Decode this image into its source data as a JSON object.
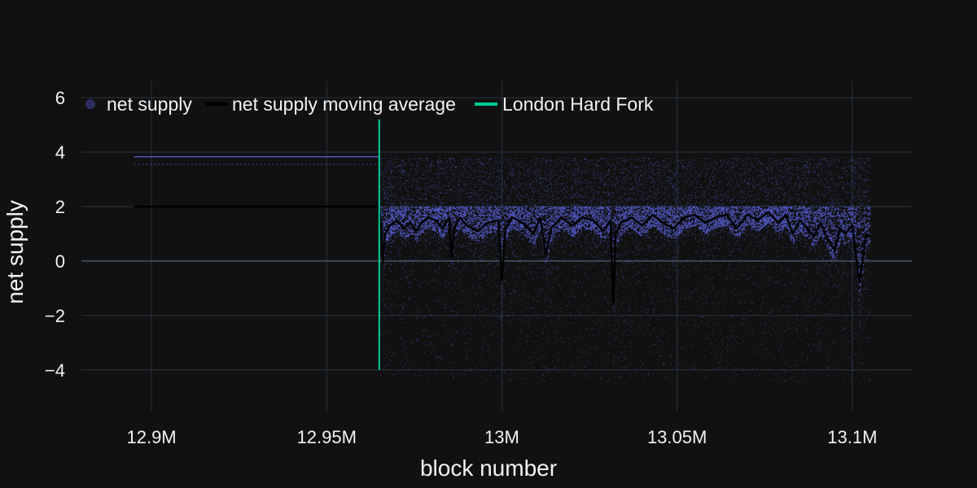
{
  "chart_data": {
    "type": "scatter",
    "xlabel": "block number",
    "ylabel": "net supply",
    "xlim": [
      12880000,
      13117000
    ],
    "ylim": [
      -5.5,
      6.6
    ],
    "x_ticks": [
      {
        "value": 12900000,
        "label": "12.9M"
      },
      {
        "value": 12950000,
        "label": "12.95M"
      },
      {
        "value": 13000000,
        "label": "13M"
      },
      {
        "value": 13050000,
        "label": "13.05M"
      },
      {
        "value": 13100000,
        "label": "13.1M"
      }
    ],
    "y_ticks": [
      {
        "value": -4,
        "label": "−4"
      },
      {
        "value": -2,
        "label": "−2"
      },
      {
        "value": 0,
        "label": "0"
      },
      {
        "value": 2,
        "label": "2"
      },
      {
        "value": 4,
        "label": "4"
      },
      {
        "value": 6,
        "label": "6"
      }
    ],
    "grid": true,
    "legend_position": "top-left",
    "legend": [
      {
        "name": "net supply",
        "kind": "marker",
        "color": "#2e2e5e"
      },
      {
        "name": "net supply moving average",
        "kind": "line",
        "color": "#000000"
      },
      {
        "name": "London Hard Fork",
        "kind": "line",
        "color": "#00cc96"
      }
    ],
    "series": [
      {
        "name": "net supply",
        "color": "#636efa",
        "pre_fork_levels": [
          2.0,
          3.83,
          3.55
        ],
        "x_range": [
          12895000,
          13105000
        ],
        "post_fork_band": {
          "upper": 2.0,
          "typical_low": 0.3,
          "sparse_high": 3.8,
          "min": -4.5
        }
      },
      {
        "name": "net supply moving average",
        "color": "#000000",
        "x": [
          12895000,
          12965000,
          12965500,
          12966000,
          12966600,
          12967200,
          12968000,
          12970000,
          12972000,
          12974000,
          12975500,
          12977000,
          12979000,
          12981000,
          12983000,
          12985000,
          12985700,
          12986400,
          12988000,
          12990000,
          12993000,
          12996000,
          12999000,
          13000000,
          13001000,
          13003000,
          13006000,
          13009000,
          13011000,
          13012500,
          13014000,
          13017000,
          13020000,
          13023000,
          13026000,
          13029000,
          13031000,
          13031800,
          13032500,
          13034000,
          13037000,
          13040000,
          13043000,
          13046000,
          13049000,
          13052000,
          13055000,
          13058000,
          13061000,
          13064000,
          13067000,
          13070000,
          13073000,
          13076000,
          13079000,
          13081000,
          13083000,
          13085000,
          13087000,
          13089000,
          13091000,
          13093000,
          13095000,
          13096500,
          13098000,
          13100000,
          13102000,
          13104000,
          13105000
        ],
        "y": [
          2.0,
          2.0,
          1.3,
          -0.05,
          1.0,
          1.1,
          1.3,
          1.5,
          1.2,
          1.4,
          1.1,
          1.4,
          1.6,
          1.5,
          1.2,
          1.6,
          0.15,
          1.2,
          1.6,
          1.3,
          1.1,
          1.4,
          1.5,
          -0.7,
          1.2,
          1.6,
          1.4,
          1.0,
          1.6,
          0.2,
          1.2,
          1.6,
          1.3,
          1.6,
          1.5,
          1.1,
          1.5,
          -1.6,
          1.0,
          1.4,
          1.6,
          1.3,
          1.7,
          1.4,
          1.2,
          1.6,
          1.7,
          1.4,
          1.6,
          1.7,
          1.2,
          1.7,
          1.5,
          1.8,
          1.4,
          1.7,
          1.0,
          1.5,
          1.2,
          0.9,
          1.4,
          0.8,
          0.4,
          1.2,
          1.0,
          1.3,
          -0.8,
          1.0,
          0.9
        ]
      },
      {
        "name": "London Hard Fork",
        "color": "#00cc96",
        "x": [
          12965000,
          12965000
        ],
        "y": [
          -4.0,
          5.2
        ]
      }
    ]
  }
}
